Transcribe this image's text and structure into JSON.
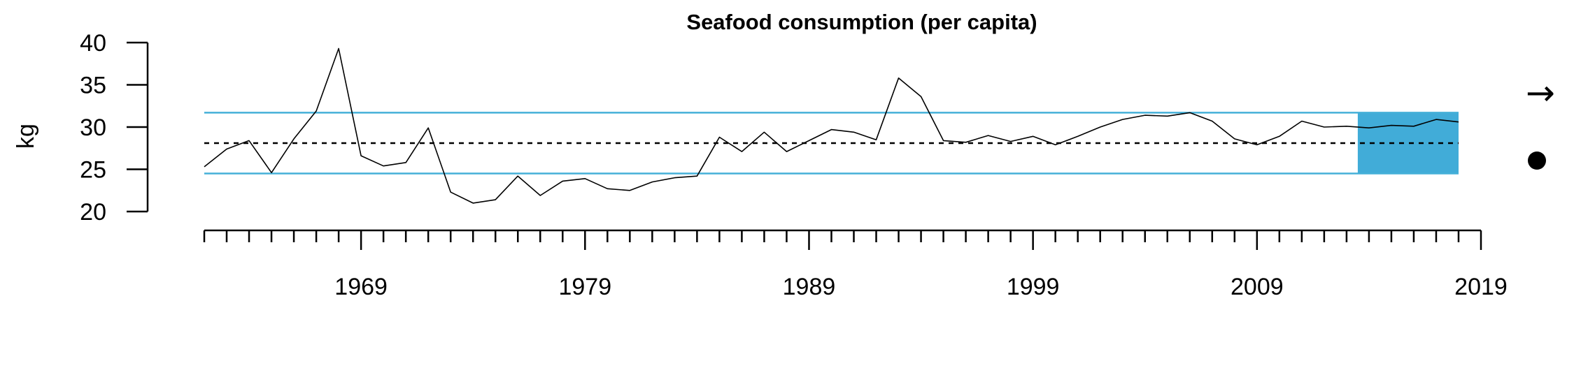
{
  "chart_data": {
    "type": "line",
    "title": "Seafood consumption (per capita)",
    "ylabel": "kg",
    "xlabel": "",
    "ylim": [
      20,
      40
    ],
    "xlim": [
      1962,
      2019
    ],
    "yticks": [
      20,
      25,
      30,
      35,
      40
    ],
    "xtick_labels": [
      1969,
      1979,
      1989,
      1999,
      2009,
      2019
    ],
    "series": [
      {
        "x": [
          1962,
          1963,
          1964,
          1965,
          1966,
          1967,
          1968,
          1969,
          1970,
          1971,
          1972,
          1973,
          1974,
          1975,
          1976,
          1977,
          1978,
          1979,
          1980,
          1981,
          1982,
          1983,
          1984,
          1985,
          1986,
          1987,
          1988,
          1989,
          1990,
          1991,
          1992,
          1993,
          1994,
          1995,
          1996,
          1997,
          1998,
          1999,
          2000,
          2001,
          2002,
          2003,
          2004,
          2005,
          2006,
          2007,
          2008,
          2009,
          2010,
          2011,
          2012,
          2013,
          2014,
          2015,
          2016,
          2017,
          2018
        ],
        "values": [
          25.3,
          27.4,
          28.4,
          24.6,
          28.6,
          31.9,
          39.3,
          26.6,
          25.4,
          25.8,
          29.9,
          22.3,
          21.0,
          21.4,
          24.2,
          21.9,
          23.6,
          23.9,
          22.7,
          22.5,
          23.5,
          24.0,
          24.2,
          28.8,
          27.1,
          29.4,
          27.1,
          28.4,
          29.7,
          29.4,
          28.5,
          35.8,
          33.6,
          28.4,
          28.2,
          29.0,
          28.3,
          28.9,
          27.9,
          28.9,
          30.0,
          30.9,
          31.4,
          31.3,
          31.7,
          30.7,
          28.6,
          27.9,
          28.9,
          30.7,
          30.0,
          30.1,
          29.9,
          30.2,
          30.1,
          30.9,
          30.6
        ],
        "color": "#000000"
      }
    ],
    "mean": 28.1,
    "upper_band": 31.7,
    "lower_band": 24.5,
    "highlight_range": [
      2014,
      2018
    ],
    "colors": {
      "band_line": "#45b0d8",
      "highlight_fill": "#41acd8",
      "line": "#000000",
      "mean_line": "#000000"
    },
    "grid": false,
    "trend_symbol": "→",
    "status_icon": "filled-circle"
  }
}
